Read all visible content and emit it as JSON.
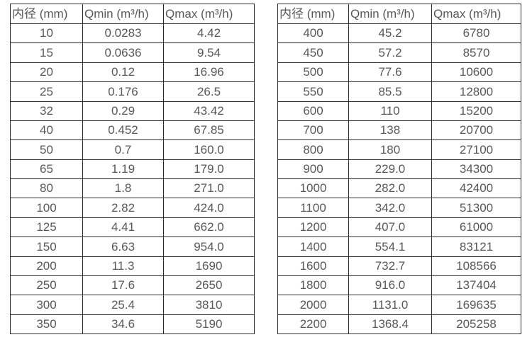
{
  "colors": {
    "border": "#2b2b2b",
    "text": "#58585a",
    "background": "#ffffff"
  },
  "chart_data": [
    {
      "type": "table",
      "headers": [
        "内径 (mm)",
        "Qmin (m³/h)",
        "Qmax (m³/h)"
      ],
      "rows": [
        [
          "10",
          "0.0283",
          "4.42"
        ],
        [
          "15",
          "0.0636",
          "9.54"
        ],
        [
          "20",
          "0.12",
          "16.96"
        ],
        [
          "25",
          "0.176",
          "26.5"
        ],
        [
          "32",
          "0.29",
          "43.42"
        ],
        [
          "40",
          "0.452",
          "67.85"
        ],
        [
          "50",
          "0.7",
          "160.0"
        ],
        [
          "65",
          "1.19",
          "179.0"
        ],
        [
          "80",
          "1.8",
          "271.0"
        ],
        [
          "100",
          "2.82",
          "424.0"
        ],
        [
          "125",
          "4.41",
          "662.0"
        ],
        [
          "150",
          "6.63",
          "954.0"
        ],
        [
          "200",
          "11.3",
          "1690"
        ],
        [
          "250",
          "17.6",
          "2650"
        ],
        [
          "300",
          "25.4",
          "3810"
        ],
        [
          "350",
          "34.6",
          "5190"
        ]
      ]
    },
    {
      "type": "table",
      "headers": [
        "内径 (mm)",
        "Qmin (m³/h)",
        "Qmax (m³/h)"
      ],
      "rows": [
        [
          "400",
          "45.2",
          "6780"
        ],
        [
          "450",
          "57.2",
          "8570"
        ],
        [
          "500",
          "77.6",
          "10600"
        ],
        [
          "550",
          "85.5",
          "12800"
        ],
        [
          "600",
          "110",
          "15200"
        ],
        [
          "700",
          "138",
          "20700"
        ],
        [
          "800",
          "180",
          "27100"
        ],
        [
          "900",
          "229.0",
          "34300"
        ],
        [
          "1000",
          "282.0",
          "42400"
        ],
        [
          "1100",
          "342.0",
          "51300"
        ],
        [
          "1200",
          "407.0",
          "61000"
        ],
        [
          "1400",
          "554.1",
          "83121"
        ],
        [
          "1600",
          "732.7",
          "108566"
        ],
        [
          "1800",
          "916.0",
          "137404"
        ],
        [
          "2000",
          "1131.0",
          "169635"
        ],
        [
          "2200",
          "1368.4",
          "205258"
        ]
      ]
    }
  ]
}
